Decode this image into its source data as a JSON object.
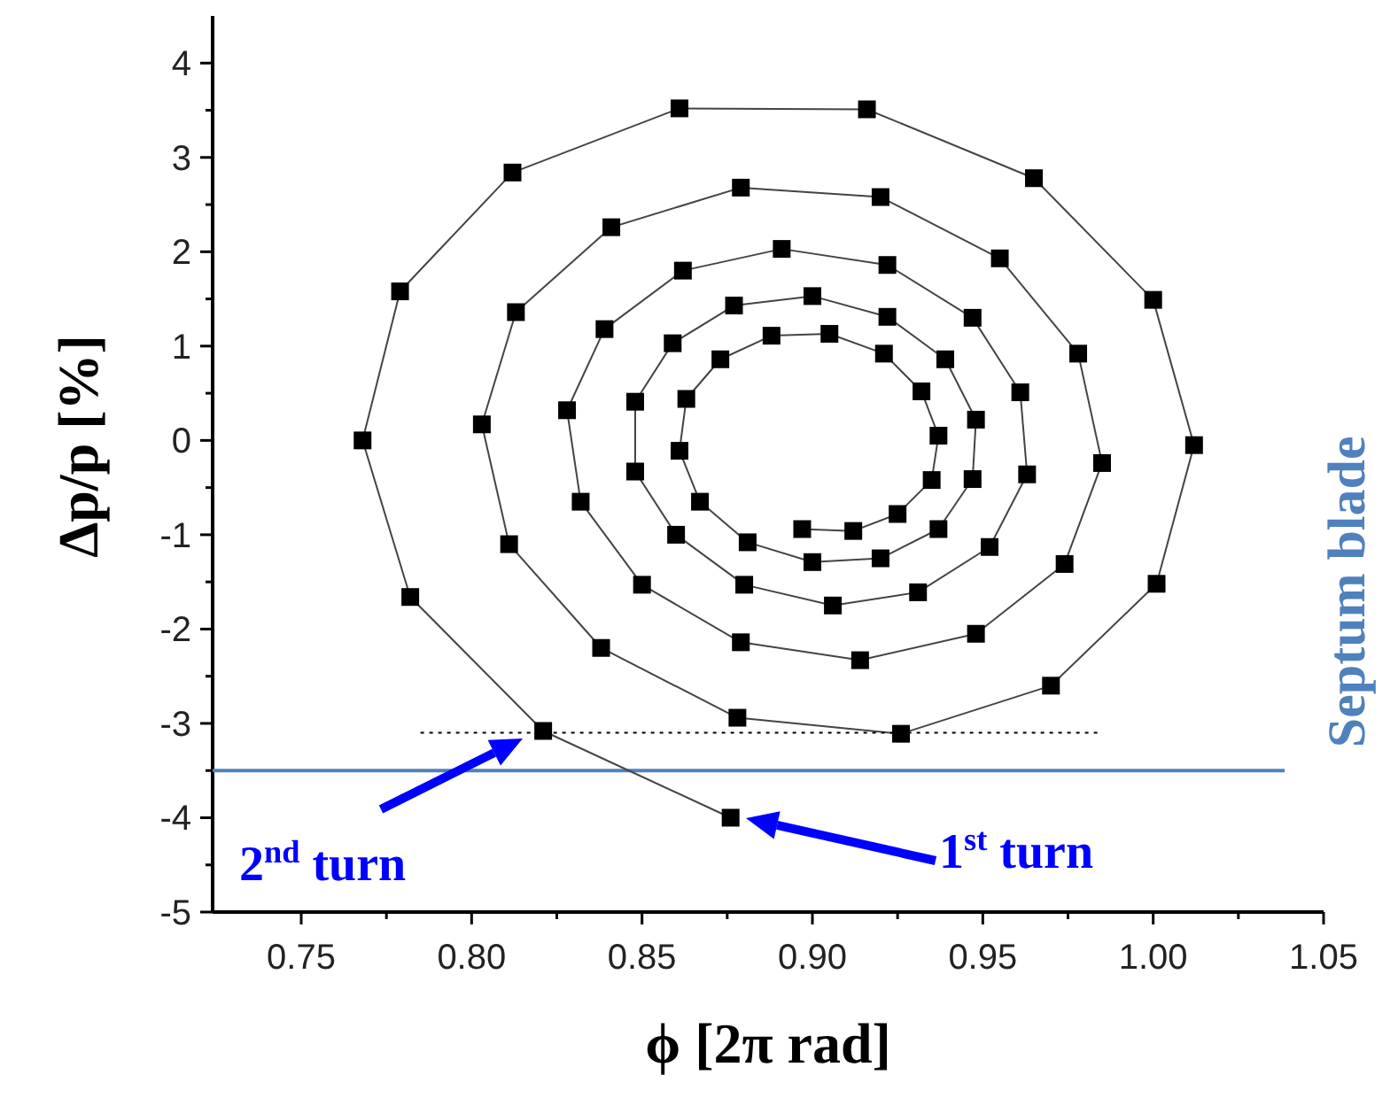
{
  "chart_data": {
    "type": "line",
    "xlabel": "ϕ [2π rad]",
    "ylabel": "Δp/p [%]",
    "xlim": [
      0.724,
      1.05
    ],
    "ylim": [
      -5,
      4.5
    ],
    "xticks": [
      0.75,
      {
        "value": 0.775,
        "label": null
      },
      {
        "value": 0.8,
        "label": "0.80"
      },
      {
        "value": 0.825,
        "label": null
      },
      0.85,
      {
        "value": 0.875,
        "label": null
      },
      {
        "value": 0.9,
        "label": "0.90"
      },
      {
        "value": 0.925,
        "label": null
      },
      0.95,
      {
        "value": 0.975,
        "label": null
      },
      {
        "value": 1,
        "label": "1.00"
      },
      {
        "value": 1.025,
        "label": null
      },
      1.05
    ],
    "yticks": [
      -5,
      {
        "value": -4.5,
        "label": null
      },
      -4,
      {
        "value": -3.5,
        "label": null
      },
      -3,
      {
        "value": -2.5,
        "label": null
      },
      -2,
      {
        "value": -1.5,
        "label": null
      },
      -1,
      {
        "value": -0.5,
        "label": null
      },
      0,
      {
        "value": 0.5,
        "label": null
      },
      1,
      {
        "value": 1.5,
        "label": null
      },
      2,
      {
        "value": 2.5,
        "label": null
      },
      3,
      {
        "value": 3.5,
        "label": null
      },
      4
    ],
    "grid": false,
    "series": [
      {
        "color": "#000000",
        "marker": "square",
        "line_style": "solid",
        "x": [
          0.876,
          0.821,
          0.782,
          0.768,
          0.779,
          0.812,
          0.861,
          0.916,
          0.965,
          1.0,
          1.012,
          1.001,
          0.97,
          0.926,
          0.878,
          0.838,
          0.811,
          0.803,
          0.813,
          0.841,
          0.879,
          0.92,
          0.955,
          0.978,
          0.985,
          0.974,
          0.948,
          0.914,
          0.879,
          0.85,
          0.832,
          0.828,
          0.839,
          0.862,
          0.891,
          0.922,
          0.947,
          0.961,
          0.963,
          0.952,
          0.931,
          0.906,
          0.88,
          0.86,
          0.848,
          0.848,
          0.859,
          0.877,
          0.9,
          0.922,
          0.939,
          0.948,
          0.947,
          0.937,
          0.92,
          0.9,
          0.881,
          0.867,
          0.861,
          0.863,
          0.873,
          0.888,
          0.905,
          0.921,
          0.932,
          0.937,
          0.935,
          0.925,
          0.912,
          0.897
        ],
        "values": [
          -4.0,
          -3.08,
          -1.66,
          0.0,
          1.58,
          2.84,
          3.52,
          3.51,
          2.78,
          1.49,
          -0.05,
          -1.52,
          -2.6,
          -3.11,
          -2.94,
          -2.2,
          -1.1,
          0.17,
          1.36,
          2.26,
          2.68,
          2.58,
          1.93,
          0.92,
          -0.24,
          -1.31,
          -2.05,
          -2.33,
          -2.14,
          -1.53,
          -0.65,
          0.32,
          1.18,
          1.8,
          2.03,
          1.86,
          1.3,
          0.51,
          -0.36,
          -1.13,
          -1.61,
          -1.75,
          -1.53,
          -1.0,
          -0.33,
          0.41,
          1.03,
          1.43,
          1.53,
          1.31,
          0.86,
          0.22,
          -0.41,
          -0.94,
          -1.25,
          -1.29,
          -1.08,
          -0.65,
          -0.11,
          0.44,
          0.86,
          1.11,
          1.13,
          0.92,
          0.52,
          0.05,
          -0.42,
          -0.78,
          -0.96,
          -0.94
        ]
      },
      {
        "color": "#000000",
        "marker": "none",
        "line_style": "dotted",
        "x": [
          0.785,
          0.985
        ],
        "values": [
          -3.1,
          -3.1
        ]
      }
    ],
    "ref_lines": [
      {
        "axis": "y",
        "value": -3.5,
        "label": "Septum blade",
        "color": "#4f81bd",
        "line_style": "solid"
      }
    ],
    "annotations": [
      "1$^{st}$ turn",
      "2$^{nd}$ turn"
    ]
  }
}
